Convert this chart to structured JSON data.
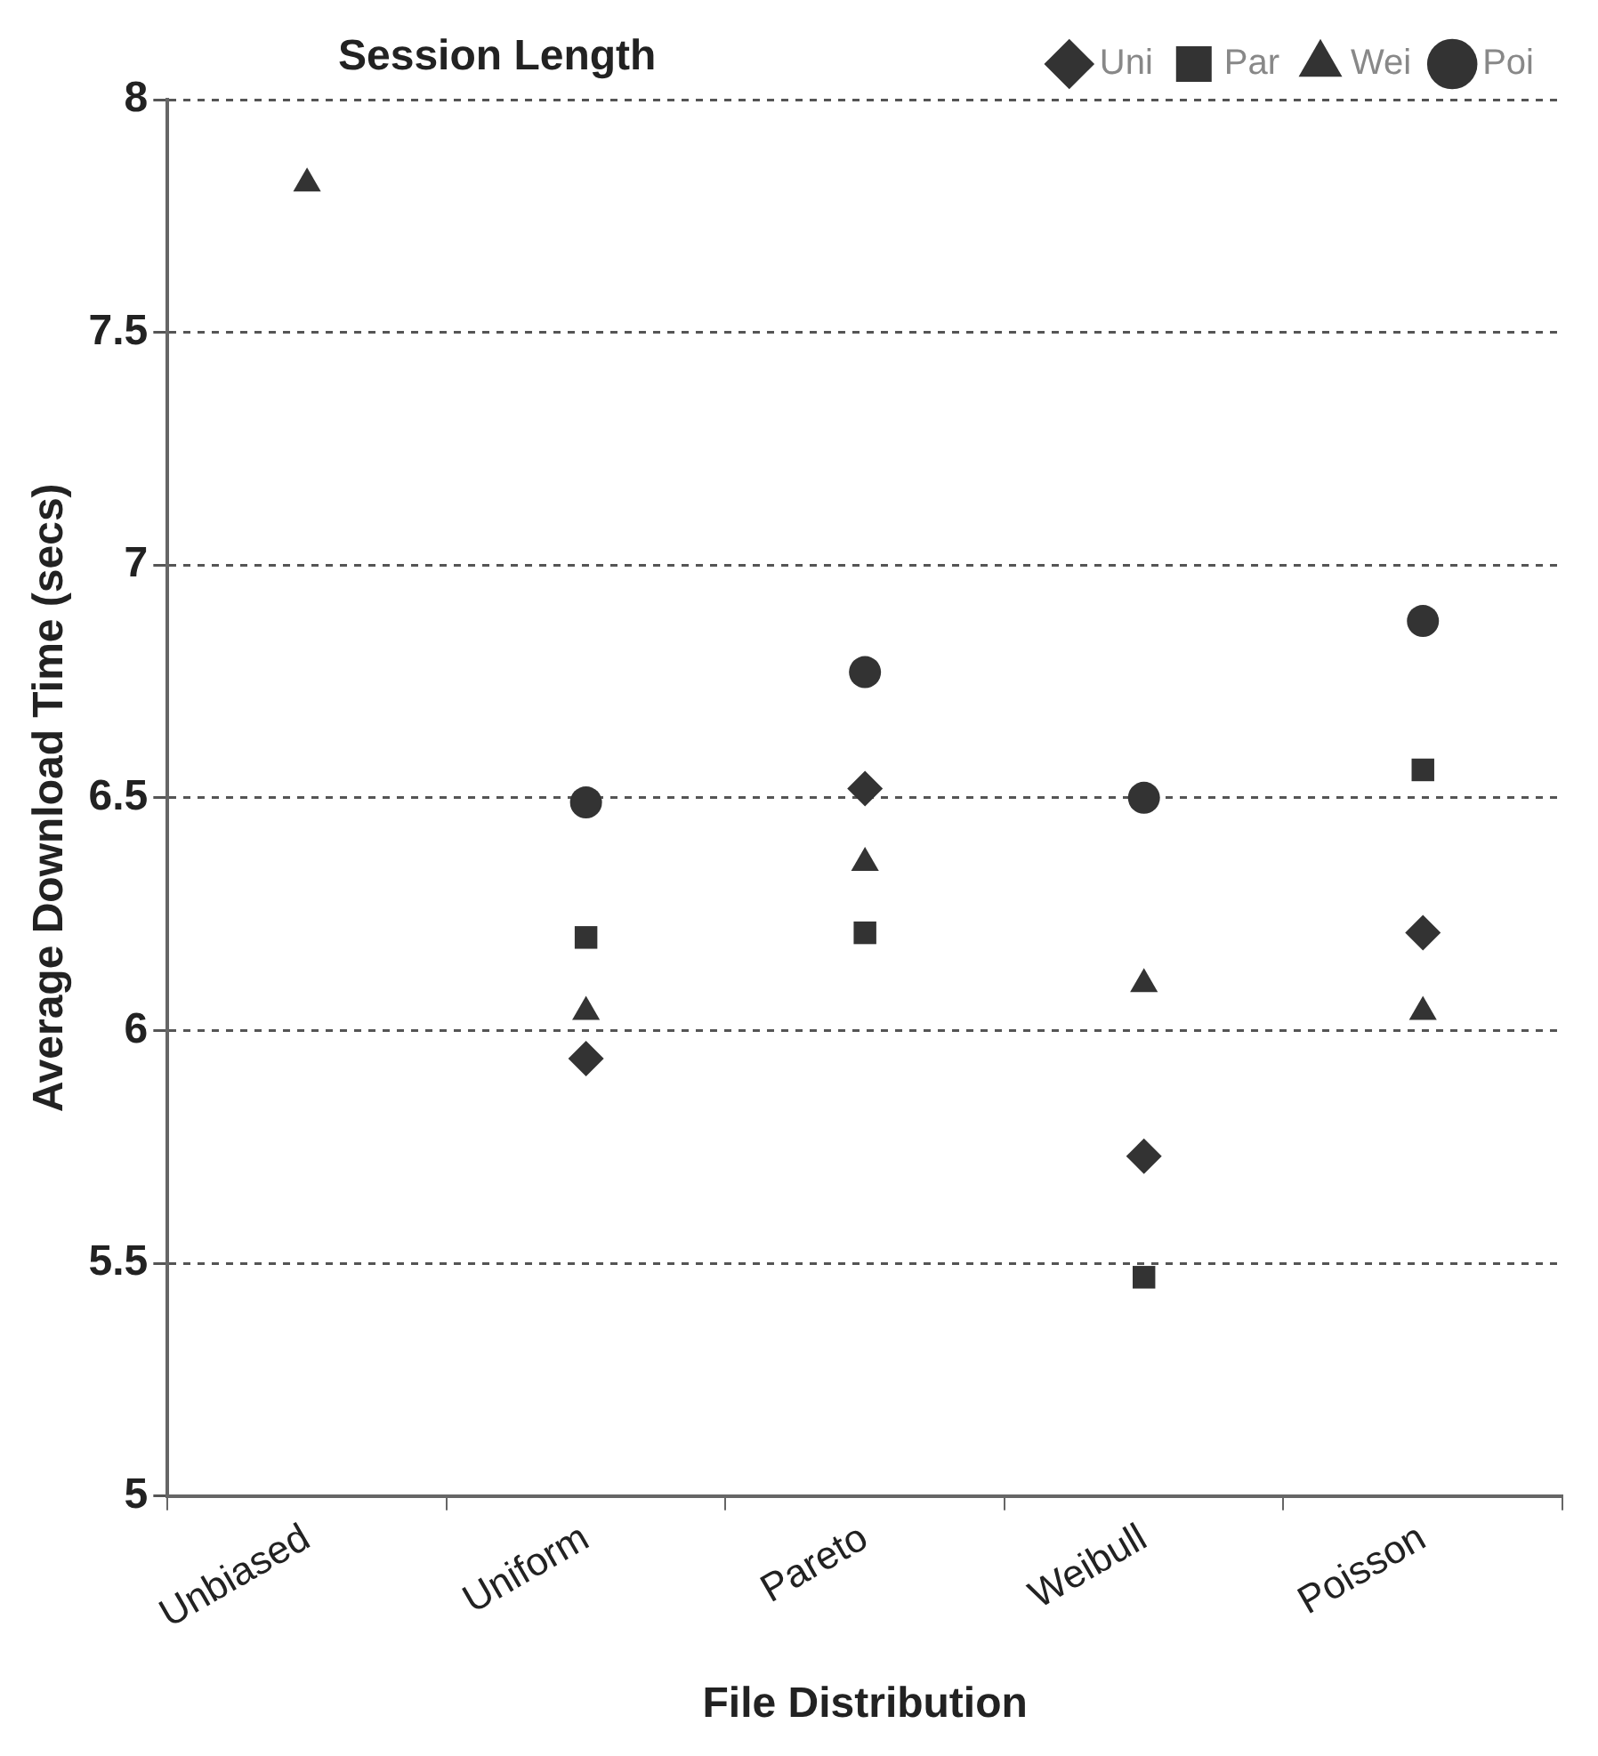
{
  "chart_data": {
    "type": "scatter",
    "xlabel": "File Distribution",
    "ylabel": "Average Download Time (secs)",
    "legend_title": "Session Length",
    "categories": [
      "Unbiased",
      "Uniform",
      "Pareto",
      "Weibull",
      "Poisson"
    ],
    "series": [
      {
        "name": "Uni",
        "color": "#333333",
        "marker": "diamond",
        "values": [
          null,
          5.94,
          6.52,
          5.73,
          6.21
        ]
      },
      {
        "name": "Par",
        "color": "#333333",
        "marker": "square",
        "values": [
          null,
          6.2,
          6.21,
          5.47,
          6.56
        ]
      },
      {
        "name": "Wei",
        "color": "#333333",
        "marker": "triangle",
        "values": [
          7.82,
          6.04,
          6.36,
          6.1,
          6.04
        ]
      },
      {
        "name": "Poi",
        "color": "#333333",
        "marker": "circle",
        "values": [
          null,
          6.49,
          6.77,
          6.5,
          6.88
        ]
      }
    ],
    "ylim": [
      5,
      8
    ],
    "yticks": [
      5,
      5.5,
      6,
      6.5,
      7,
      7.5,
      8
    ],
    "grid": "y",
    "legend": "top right"
  }
}
